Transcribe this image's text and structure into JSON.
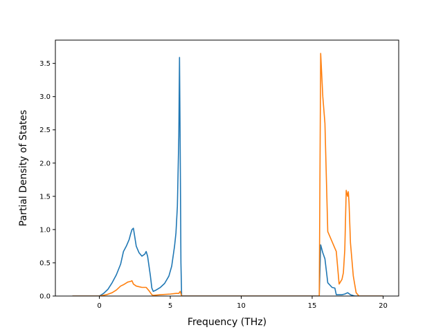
{
  "chart_data": {
    "type": "line",
    "title": "",
    "xlabel": "Frequency (THz)",
    "ylabel": "Partial Density of States",
    "xlim": [
      -3.1,
      21.1
    ],
    "ylim": [
      0,
      3.85
    ],
    "xticks": [
      0,
      5,
      10,
      15,
      20
    ],
    "xtick_labels": [
      "0",
      "5",
      "10",
      "15",
      "20"
    ],
    "yticks": [
      0.0,
      0.5,
      1.0,
      1.5,
      2.0,
      2.5,
      3.0,
      3.5
    ],
    "ytick_labels": [
      "0.0",
      "0.5",
      "1.0",
      "1.5",
      "2.0",
      "2.5",
      "3.0",
      "3.5"
    ],
    "grid": false,
    "legend": "none",
    "series": [
      {
        "color": "#1f77b4",
        "x": [
          -1.9,
          0.0,
          0.3,
          0.6,
          0.9,
          1.2,
          1.5,
          1.7,
          1.9,
          2.1,
          2.2,
          2.3,
          2.4,
          2.6,
          2.8,
          3.0,
          3.2,
          3.3,
          3.4,
          3.5,
          3.6,
          3.7,
          3.8,
          4.0,
          4.3,
          4.6,
          4.9,
          5.1,
          5.3,
          5.4,
          5.5,
          5.6,
          5.65,
          5.7,
          5.75,
          5.8,
          6.0,
          10.0,
          15.3,
          15.5,
          15.6,
          15.75,
          15.9,
          16.1,
          16.4,
          16.6,
          16.7,
          16.9,
          17.1,
          17.3,
          17.5,
          17.7,
          18.0,
          20.0
        ],
        "y": [
          0.0,
          0.0,
          0.04,
          0.1,
          0.2,
          0.32,
          0.48,
          0.67,
          0.75,
          0.85,
          0.93,
          1.0,
          1.02,
          0.75,
          0.65,
          0.6,
          0.63,
          0.67,
          0.6,
          0.45,
          0.3,
          0.12,
          0.07,
          0.09,
          0.13,
          0.19,
          0.3,
          0.45,
          0.75,
          0.95,
          1.35,
          2.4,
          3.59,
          2.2,
          0.5,
          0.0,
          0.0,
          0.0,
          0.0,
          0.0,
          0.77,
          0.65,
          0.56,
          0.2,
          0.13,
          0.12,
          0.02,
          0.02,
          0.02,
          0.03,
          0.05,
          0.02,
          0.0,
          0.0
        ]
      },
      {
        "color": "#ff7f0e",
        "x": [
          -1.9,
          0.0,
          0.5,
          0.9,
          1.2,
          1.5,
          1.7,
          2.0,
          2.2,
          2.3,
          2.4,
          2.6,
          2.8,
          3.0,
          3.2,
          3.3,
          3.5,
          3.7,
          3.8,
          4.3,
          5.0,
          5.4,
          5.6,
          5.7,
          5.8,
          6.0,
          10.0,
          15.3,
          15.5,
          15.6,
          15.75,
          15.9,
          16.1,
          16.4,
          16.6,
          16.7,
          16.9,
          17.1,
          17.2,
          17.3,
          17.4,
          17.5,
          17.55,
          17.6,
          17.7,
          17.9,
          18.1,
          18.3,
          20.0
        ],
        "y": [
          0.0,
          0.0,
          0.02,
          0.05,
          0.09,
          0.15,
          0.17,
          0.21,
          0.22,
          0.23,
          0.18,
          0.15,
          0.14,
          0.13,
          0.13,
          0.13,
          0.08,
          0.02,
          0.01,
          0.02,
          0.03,
          0.04,
          0.04,
          0.07,
          0.0,
          0.0,
          0.0,
          0.0,
          0.0,
          3.65,
          3.0,
          2.6,
          0.97,
          0.82,
          0.72,
          0.67,
          0.18,
          0.25,
          0.35,
          0.7,
          1.59,
          1.5,
          1.57,
          1.4,
          0.8,
          0.3,
          0.05,
          0.0,
          0.0
        ]
      }
    ]
  }
}
